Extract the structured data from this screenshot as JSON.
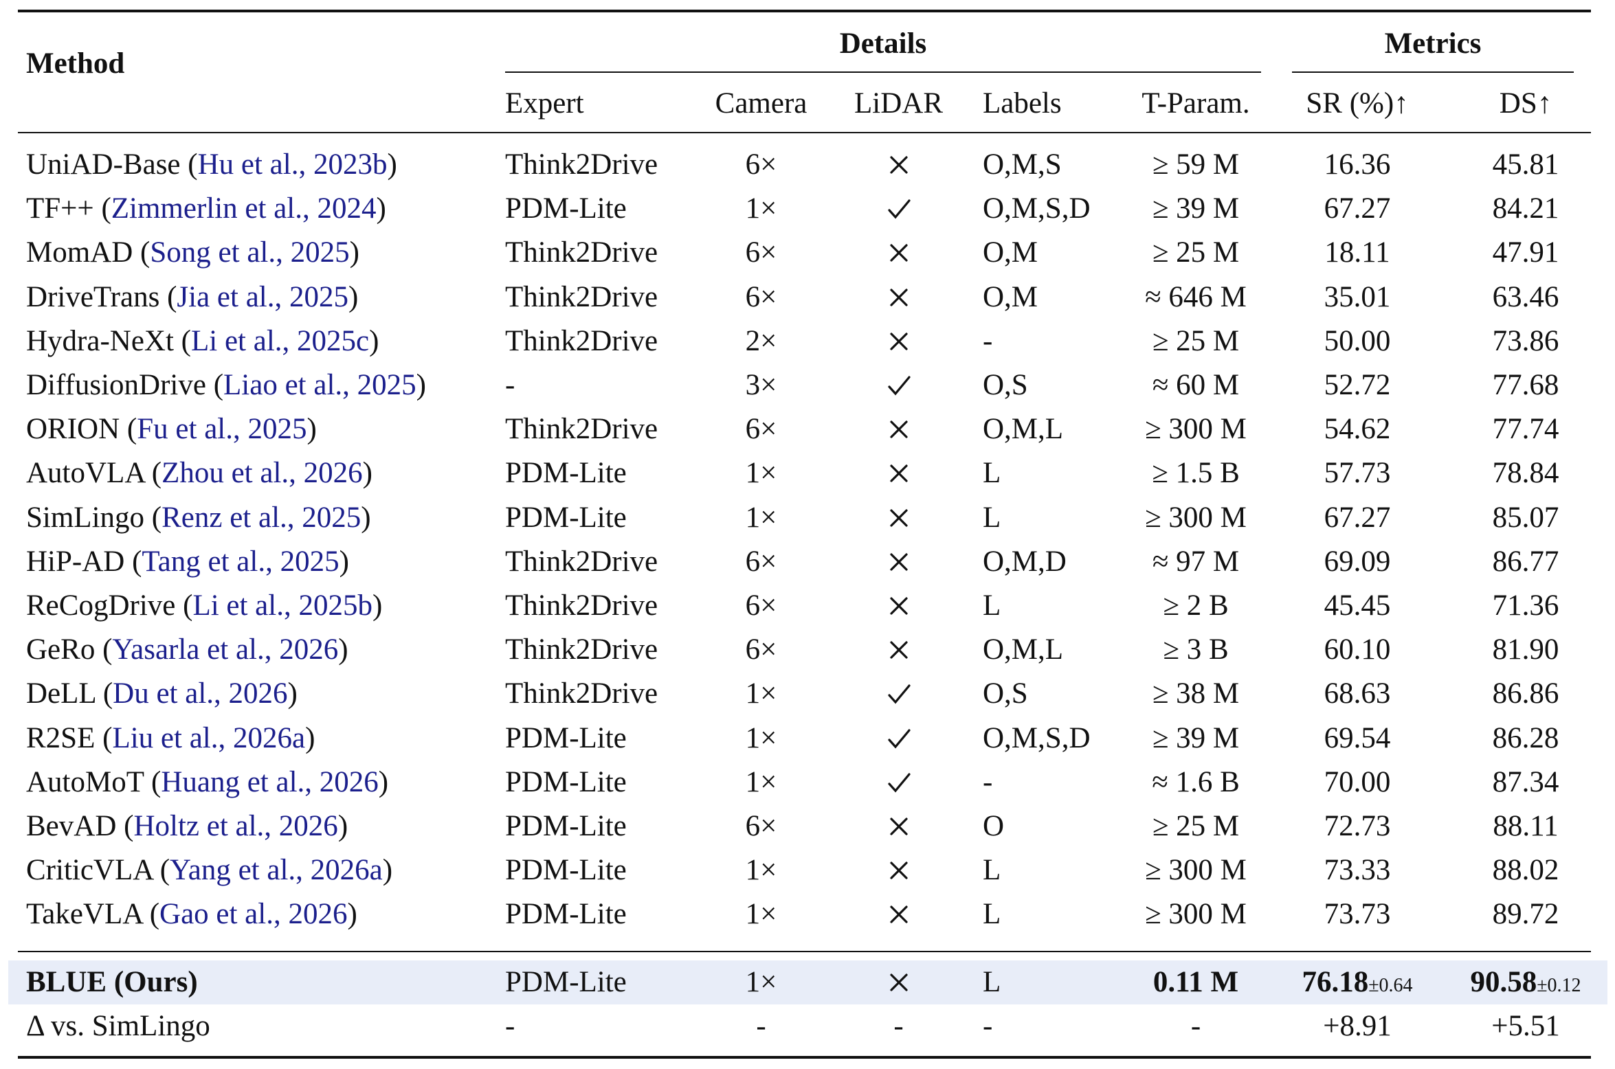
{
  "header": {
    "method": "Method",
    "details": "Details",
    "metrics": "Metrics",
    "columns": [
      "Expert",
      "Camera",
      "LiDAR",
      "Labels",
      "T-Param.",
      "SR (%)↑",
      "DS↑"
    ]
  },
  "rows": [
    {
      "name": "UniAD-Base",
      "cite": "Hu et al., 2023b",
      "expert": "Think2Drive",
      "camera": "6×",
      "lidar": "no",
      "labels": "O,M,S",
      "tparam": "≥ 59 M",
      "sr": "16.36",
      "ds": "45.81"
    },
    {
      "name": "TF++",
      "cite": "Zimmerlin et al., 2024",
      "expert": "PDM-Lite",
      "camera": "1×",
      "lidar": "yes",
      "labels": "O,M,S,D",
      "tparam": "≥ 39 M",
      "sr": "67.27",
      "ds": "84.21"
    },
    {
      "name": "MomAD",
      "cite": "Song et al., 2025",
      "expert": "Think2Drive",
      "camera": "6×",
      "lidar": "no",
      "labels": "O,M",
      "tparam": "≥ 25 M",
      "sr": "18.11",
      "ds": "47.91"
    },
    {
      "name": "DriveTrans",
      "cite": "Jia et al., 2025",
      "expert": "Think2Drive",
      "camera": "6×",
      "lidar": "no",
      "labels": "O,M",
      "tparam": "≈ 646 M",
      "sr": "35.01",
      "ds": "63.46"
    },
    {
      "name": "Hydra-NeXt",
      "cite": "Li et al., 2025c",
      "expert": "Think2Drive",
      "camera": "2×",
      "lidar": "no",
      "labels": "-",
      "tparam": "≥ 25 M",
      "sr": "50.00",
      "ds": "73.86"
    },
    {
      "name": "DiffusionDrive",
      "cite": "Liao et al., 2025",
      "expert": "-",
      "camera": "3×",
      "lidar": "yes",
      "labels": "O,S",
      "tparam": "≈ 60 M",
      "sr": "52.72",
      "ds": "77.68"
    },
    {
      "name": "ORION",
      "cite": "Fu et al., 2025",
      "expert": "Think2Drive",
      "camera": "6×",
      "lidar": "no",
      "labels": "O,M,L",
      "tparam": "≥ 300 M",
      "sr": "54.62",
      "ds": "77.74"
    },
    {
      "name": "AutoVLA",
      "cite": "Zhou et al., 2026",
      "expert": "PDM-Lite",
      "camera": "1×",
      "lidar": "no",
      "labels": "L",
      "tparam": "≥ 1.5 B",
      "sr": "57.73",
      "ds": "78.84"
    },
    {
      "name": "SimLingo",
      "cite": "Renz et al., 2025",
      "expert": "PDM-Lite",
      "camera": "1×",
      "lidar": "no",
      "labels": "L",
      "tparam": "≥ 300 M",
      "sr": "67.27",
      "ds": "85.07"
    },
    {
      "name": "HiP-AD",
      "cite": "Tang et al., 2025",
      "expert": "Think2Drive",
      "camera": "6×",
      "lidar": "no",
      "labels": "O,M,D",
      "tparam": "≈ 97 M",
      "sr": "69.09",
      "ds": "86.77"
    },
    {
      "name": "ReCogDrive",
      "cite": "Li et al., 2025b",
      "expert": "Think2Drive",
      "camera": "6×",
      "lidar": "no",
      "labels": "L",
      "tparam": "≥ 2 B",
      "sr": "45.45",
      "ds": "71.36"
    },
    {
      "name": "GeRo",
      "cite": "Yasarla et al., 2026",
      "expert": "Think2Drive",
      "camera": "6×",
      "lidar": "no",
      "labels": "O,M,L",
      "tparam": "≥ 3 B",
      "sr": "60.10",
      "ds": "81.90"
    },
    {
      "name": "DeLL",
      "cite": "Du et al., 2026",
      "expert": "Think2Drive",
      "camera": "1×",
      "lidar": "yes",
      "labels": "O,S",
      "tparam": "≥ 38 M",
      "sr": "68.63",
      "ds": "86.86"
    },
    {
      "name": "R2SE",
      "cite": "Liu et al., 2026a",
      "expert": "PDM-Lite",
      "camera": "1×",
      "lidar": "yes",
      "labels": "O,M,S,D",
      "tparam": "≥ 39 M",
      "sr": "69.54",
      "ds": "86.28"
    },
    {
      "name": "AutoMoT",
      "cite": "Huang et al., 2026",
      "expert": "PDM-Lite",
      "camera": "1×",
      "lidar": "yes",
      "labels": "-",
      "tparam": "≈ 1.6 B",
      "sr": "70.00",
      "ds": "87.34"
    },
    {
      "name": "BevAD",
      "cite": "Holtz et al., 2026",
      "expert": "PDM-Lite",
      "camera": "6×",
      "lidar": "no",
      "labels": "O",
      "tparam": "≥ 25 M",
      "sr": "72.73",
      "ds": "88.11"
    },
    {
      "name": "CriticVLA",
      "cite": "Yang et al., 2026a",
      "expert": "PDM-Lite",
      "camera": "1×",
      "lidar": "no",
      "labels": "L",
      "tparam": "≥ 300 M",
      "sr": "73.33",
      "ds": "88.02"
    },
    {
      "name": "TakeVLA",
      "cite": "Gao et al., 2026",
      "expert": "PDM-Lite",
      "camera": "1×",
      "lidar": "no",
      "labels": "L",
      "tparam": "≥ 300 M",
      "sr": "73.73",
      "ds": "89.72"
    }
  ],
  "ours": {
    "name": "BLUE (Ours)",
    "expert": "PDM-Lite",
    "camera": "1×",
    "lidar": "no",
    "labels": "L",
    "tparam": "0.11 M",
    "sr": "76.18",
    "sr_pm": "±0.64",
    "ds": "90.58",
    "ds_pm": "±0.12"
  },
  "delta": {
    "name": "Δ vs. SimLingo",
    "expert": "-",
    "camera": "-",
    "lidar": "-",
    "labels": "-",
    "tparam": "-",
    "sr": "+8.91",
    "ds": "+5.51"
  },
  "icons": {
    "yes": "checkmark-icon",
    "no": "cross-icon"
  },
  "colors": {
    "citation": "#1b1f8c",
    "highlight": "#e8edf8",
    "text": "#111111"
  }
}
